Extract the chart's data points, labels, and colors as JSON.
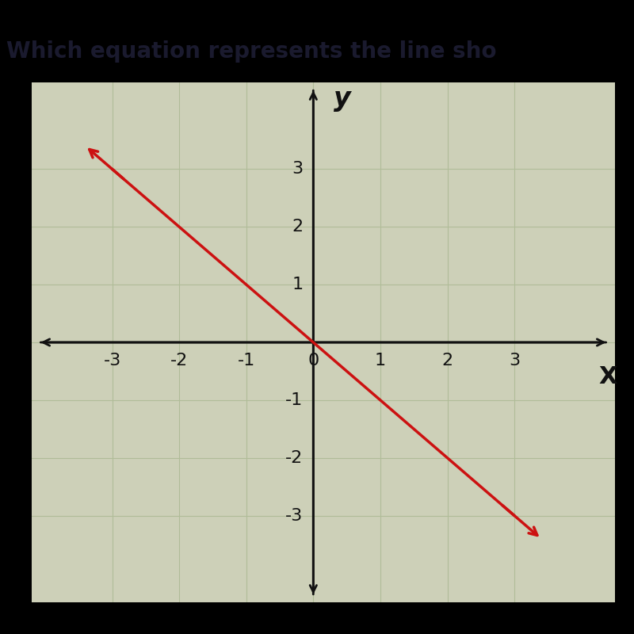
{
  "title": "Which equation represents the line sho",
  "title_fontsize": 20,
  "title_bg_color": "#b8bcd0",
  "title_text_color": "#1a1a2e",
  "bg_color": "#cdd0b8",
  "grid_color": "#b0bc98",
  "axis_color": "#111111",
  "line_color": "#cc1111",
  "line_x": [
    -3.0,
    3.0
  ],
  "line_y": [
    3.0,
    -3.0
  ],
  "xlim": [
    -4.2,
    4.5
  ],
  "ylim": [
    -4.5,
    4.5
  ],
  "xticks": [
    -3,
    -2,
    -1,
    0,
    1,
    2,
    3
  ],
  "yticks": [
    -3,
    -2,
    -1,
    1,
    2,
    3
  ],
  "xlabel": "X",
  "ylabel": "y",
  "axis_label_fontsize": 22,
  "tick_fontsize": 16,
  "line_width": 2.5
}
